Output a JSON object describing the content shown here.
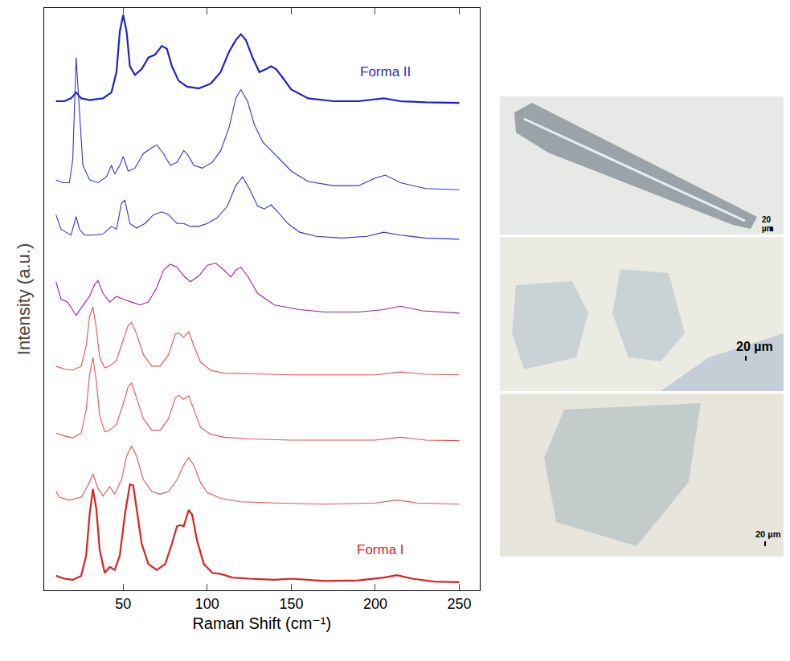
{
  "chart_data": {
    "type": "line",
    "x_label": "Raman Shift (cm⁻¹)",
    "y_label": "Intensity (a.u.)",
    "xlim": [
      3,
      262
    ],
    "xticks": [
      50,
      100,
      150,
      200,
      250
    ],
    "ylim": [
      0,
      10
    ],
    "tick_labels": "x",
    "grid": false,
    "annotations": [
      {
        "text": "Forma II",
        "x": 206,
        "y": 8.9,
        "color": "#2b2bd0"
      },
      {
        "text": "Forma I",
        "x": 203,
        "y": 0.7,
        "color": "#e02020"
      }
    ],
    "series": [
      {
        "color": "#2020d0",
        "x": [
          10,
          15,
          19,
          22,
          25,
          30,
          38,
          43,
          46,
          48,
          50,
          52,
          54,
          57,
          61,
          65,
          69,
          73,
          76,
          79,
          83,
          88,
          95,
          102,
          108,
          113,
          117,
          120,
          123,
          127,
          131,
          135,
          138,
          141,
          145,
          150,
          160,
          175,
          190,
          205,
          215,
          230,
          250
        ],
        "values": [
          8.4,
          8.4,
          8.45,
          8.55,
          8.45,
          8.42,
          8.45,
          8.55,
          8.9,
          9.6,
          9.88,
          9.6,
          9.0,
          8.85,
          8.95,
          9.15,
          9.2,
          9.35,
          9.3,
          9.0,
          8.75,
          8.65,
          8.62,
          8.7,
          8.9,
          9.25,
          9.45,
          9.55,
          9.45,
          9.15,
          8.9,
          8.95,
          9.0,
          8.95,
          8.8,
          8.6,
          8.45,
          8.4,
          8.4,
          8.45,
          8.4,
          8.38,
          8.37
        ]
      },
      {
        "color": "#3030e0",
        "x": [
          10,
          14,
          18,
          20,
          22,
          24,
          26,
          30,
          35,
          40,
          43,
          45,
          48,
          50,
          53,
          57,
          62,
          67,
          70,
          74,
          78,
          82,
          86,
          88,
          92,
          97,
          103,
          108,
          113,
          117,
          120,
          124,
          128,
          133,
          138,
          143,
          150,
          160,
          175,
          190,
          200,
          206,
          215,
          230,
          250
        ],
        "values": [
          7.05,
          7.0,
          7.0,
          7.4,
          9.15,
          8.2,
          7.3,
          7.05,
          7.0,
          7.1,
          7.3,
          7.15,
          7.3,
          7.45,
          7.2,
          7.25,
          7.5,
          7.6,
          7.65,
          7.5,
          7.3,
          7.35,
          7.55,
          7.5,
          7.3,
          7.25,
          7.35,
          7.55,
          7.95,
          8.45,
          8.6,
          8.4,
          8.0,
          7.7,
          7.55,
          7.4,
          7.2,
          7.02,
          6.95,
          6.95,
          7.08,
          7.13,
          7.0,
          6.9,
          6.88
        ]
      },
      {
        "color": "#3030e0",
        "x": [
          10,
          13,
          16,
          19,
          22,
          24,
          27,
          32,
          38,
          43,
          46,
          49,
          51,
          54,
          58,
          63,
          68,
          73,
          77,
          82,
          86,
          90,
          95,
          100,
          106,
          112,
          117,
          121,
          125,
          130,
          134,
          138,
          142,
          148,
          155,
          165,
          180,
          195,
          205,
          215,
          230,
          250
        ],
        "values": [
          6.45,
          6.2,
          6.15,
          6.1,
          6.42,
          6.2,
          6.1,
          6.1,
          6.12,
          6.25,
          6.2,
          6.65,
          6.7,
          6.3,
          6.22,
          6.3,
          6.45,
          6.5,
          6.45,
          6.3,
          6.3,
          6.25,
          6.25,
          6.3,
          6.4,
          6.6,
          6.95,
          7.1,
          6.9,
          6.6,
          6.55,
          6.62,
          6.5,
          6.3,
          6.15,
          6.08,
          6.05,
          6.08,
          6.15,
          6.1,
          6.05,
          6.03
        ]
      },
      {
        "color": "#a020a0",
        "x": [
          10,
          13,
          17,
          20,
          22,
          25,
          30,
          33,
          35,
          38,
          42,
          46,
          50,
          55,
          60,
          65,
          70,
          74,
          78,
          82,
          86,
          90,
          95,
          100,
          105,
          110,
          114,
          117,
          120,
          124,
          130,
          140,
          155,
          170,
          190,
          205,
          215,
          228,
          250
        ],
        "values": [
          5.3,
          5.0,
          4.95,
          4.8,
          4.72,
          4.85,
          5.05,
          5.25,
          5.32,
          5.1,
          4.95,
          5.05,
          5.0,
          4.95,
          4.9,
          4.95,
          5.2,
          5.5,
          5.6,
          5.55,
          5.4,
          5.3,
          5.4,
          5.58,
          5.62,
          5.5,
          5.38,
          5.5,
          5.55,
          5.4,
          5.1,
          4.9,
          4.82,
          4.78,
          4.78,
          4.82,
          4.88,
          4.8,
          4.76
        ]
      },
      {
        "color": "#e85050",
        "x": [
          10,
          15,
          20,
          25,
          28,
          30,
          32,
          34,
          36,
          39,
          42,
          46,
          50,
          53,
          55,
          58,
          62,
          67,
          72,
          77,
          81,
          83,
          86,
          89,
          92,
          96,
          102,
          110,
          125,
          150,
          200,
          215,
          230,
          250
        ],
        "values": [
          3.85,
          3.8,
          3.78,
          3.85,
          4.2,
          4.7,
          4.87,
          4.5,
          4.0,
          3.82,
          3.85,
          3.95,
          4.3,
          4.55,
          4.6,
          4.4,
          4.05,
          3.85,
          3.85,
          4.05,
          4.4,
          4.42,
          4.35,
          4.44,
          4.2,
          3.92,
          3.78,
          3.73,
          3.72,
          3.7,
          3.7,
          3.75,
          3.71,
          3.7
        ]
      },
      {
        "color": "#e85050",
        "x": [
          10,
          15,
          20,
          25,
          28,
          30,
          32,
          34,
          36,
          39,
          42,
          46,
          50,
          53,
          55,
          58,
          62,
          67,
          72,
          77,
          81,
          83,
          86,
          89,
          92,
          96,
          102,
          110,
          125,
          150,
          200,
          215,
          230,
          250
        ],
        "values": [
          2.7,
          2.65,
          2.62,
          2.7,
          3.1,
          3.7,
          4.0,
          3.6,
          3.0,
          2.72,
          2.75,
          2.85,
          3.2,
          3.5,
          3.56,
          3.3,
          2.95,
          2.75,
          2.75,
          2.95,
          3.3,
          3.35,
          3.28,
          3.34,
          3.1,
          2.8,
          2.68,
          2.63,
          2.6,
          2.58,
          2.58,
          2.63,
          2.58,
          2.57
        ]
      },
      {
        "color": "#e85050",
        "x": [
          10,
          12,
          18,
          25,
          29,
          32,
          35,
          38,
          42,
          45,
          49,
          52,
          55,
          58,
          62,
          67,
          72,
          77,
          82,
          86,
          89,
          92,
          96,
          100,
          108,
          120,
          140,
          170,
          200,
          213,
          225,
          250
        ],
        "values": [
          1.7,
          1.6,
          1.55,
          1.6,
          1.8,
          2.0,
          1.75,
          1.62,
          1.78,
          1.65,
          1.9,
          2.3,
          2.48,
          2.3,
          1.9,
          1.7,
          1.65,
          1.7,
          1.9,
          2.15,
          2.28,
          2.15,
          1.85,
          1.68,
          1.58,
          1.52,
          1.5,
          1.48,
          1.5,
          1.55,
          1.5,
          1.48
        ]
      },
      {
        "color": "#e02020",
        "x": [
          10,
          15,
          20,
          25,
          28,
          30,
          32,
          34,
          36,
          39,
          42,
          45,
          48,
          51,
          54,
          56,
          58,
          61,
          65,
          70,
          75,
          79,
          82,
          84,
          86,
          89,
          91,
          94,
          98,
          103,
          108,
          115,
          125,
          140,
          150,
          170,
          190,
          205,
          213,
          222,
          235,
          250
        ],
        "values": [
          0.25,
          0.2,
          0.18,
          0.25,
          0.6,
          1.3,
          1.74,
          1.4,
          0.7,
          0.3,
          0.4,
          0.35,
          0.6,
          1.3,
          1.82,
          1.8,
          1.4,
          0.8,
          0.45,
          0.35,
          0.45,
          0.8,
          1.1,
          1.12,
          1.1,
          1.38,
          1.3,
          0.85,
          0.45,
          0.3,
          0.28,
          0.22,
          0.2,
          0.18,
          0.2,
          0.16,
          0.17,
          0.22,
          0.26,
          0.2,
          0.15,
          0.14
        ]
      }
    ]
  },
  "micrographs": {
    "scale_labels": [
      "20 µm",
      "20 µm",
      "20 µm"
    ]
  }
}
